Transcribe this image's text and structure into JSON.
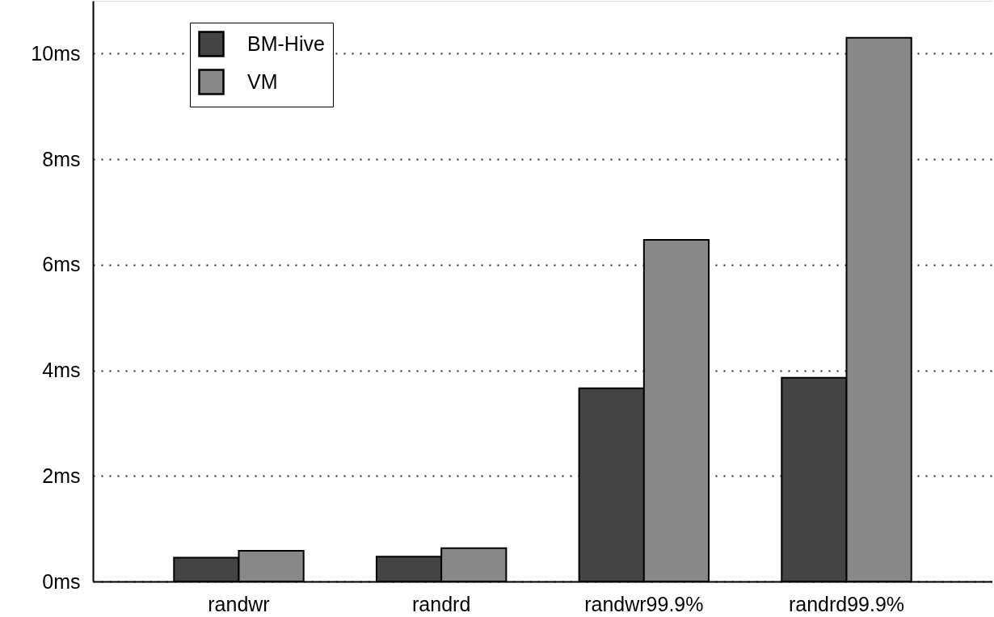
{
  "chart_data": {
    "type": "bar",
    "categories": [
      "randwr",
      "randrd",
      "randwr99.9%",
      "randrd99.9%"
    ],
    "series": [
      {
        "name": "BM-Hive",
        "color": "#444444",
        "values": [
          0.45,
          0.47,
          3.66,
          3.86
        ]
      },
      {
        "name": "VM",
        "color": "#888888",
        "values": [
          0.58,
          0.63,
          6.47,
          10.3
        ]
      }
    ],
    "ylim": [
      0,
      11
    ],
    "yticks": [
      {
        "value": 0,
        "label": "0ms"
      },
      {
        "value": 2,
        "label": "2ms"
      },
      {
        "value": 4,
        "label": "4ms"
      },
      {
        "value": 6,
        "label": "6ms"
      },
      {
        "value": 8,
        "label": "8ms"
      },
      {
        "value": 10,
        "label": "10ms"
      }
    ],
    "grid": "y",
    "legend": "top left"
  }
}
